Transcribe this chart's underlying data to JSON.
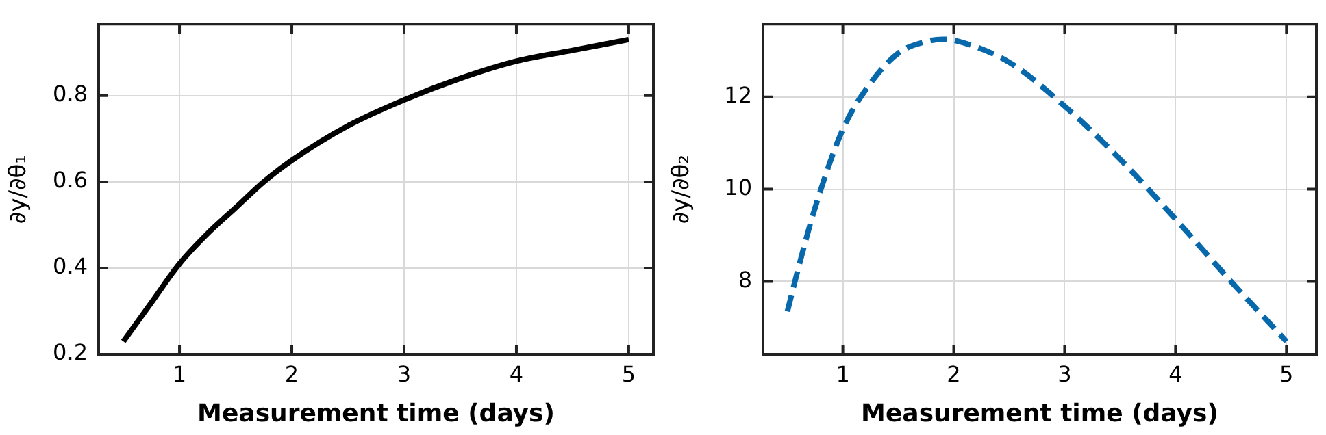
{
  "chart_data": [
    {
      "type": "line",
      "xlabel": "Measurement time (days)",
      "ylabel": "∂y/∂θ₁",
      "x": [
        0.5,
        0.75,
        1,
        1.25,
        1.5,
        1.75,
        2,
        2.5,
        3,
        3.5,
        4,
        4.5,
        5
      ],
      "series": [
        {
          "color": "#000000",
          "values": [
            0.23,
            0.32,
            0.41,
            0.48,
            0.54,
            0.6,
            0.65,
            0.73,
            0.79,
            0.84,
            0.88,
            0.905,
            0.93
          ],
          "line_style": "solid"
        }
      ],
      "xlim": [
        0.28,
        5.22
      ],
      "ylim": [
        0.2,
        0.966
      ],
      "xticks": [
        1,
        2,
        3,
        4,
        5
      ],
      "yticks": [
        0.2,
        0.4,
        0.6,
        0.8
      ],
      "grid": true,
      "marker": "none",
      "legend": false
    },
    {
      "type": "line",
      "xlabel": "Measurement time (days)",
      "ylabel": "∂y/∂θ₂",
      "x": [
        0.5,
        0.6,
        0.75,
        1,
        1.25,
        1.5,
        1.75,
        1.9,
        2,
        2.5,
        3,
        3.5,
        4,
        4.5,
        5
      ],
      "series": [
        {
          "color": "#0868ac",
          "values": [
            7.35,
            8.3,
            9.6,
            11.3,
            12.3,
            12.95,
            13.2,
            13.25,
            13.23,
            12.75,
            11.8,
            10.65,
            9.35,
            8.0,
            6.7
          ],
          "line_style": "dashed"
        }
      ],
      "xlim": [
        0.28,
        5.27
      ],
      "ylim": [
        6.42,
        13.58
      ],
      "xticks": [
        1,
        2,
        3,
        4,
        5
      ],
      "yticks": [
        8,
        10,
        12
      ],
      "grid": true,
      "marker": "none",
      "legend": false
    }
  ]
}
